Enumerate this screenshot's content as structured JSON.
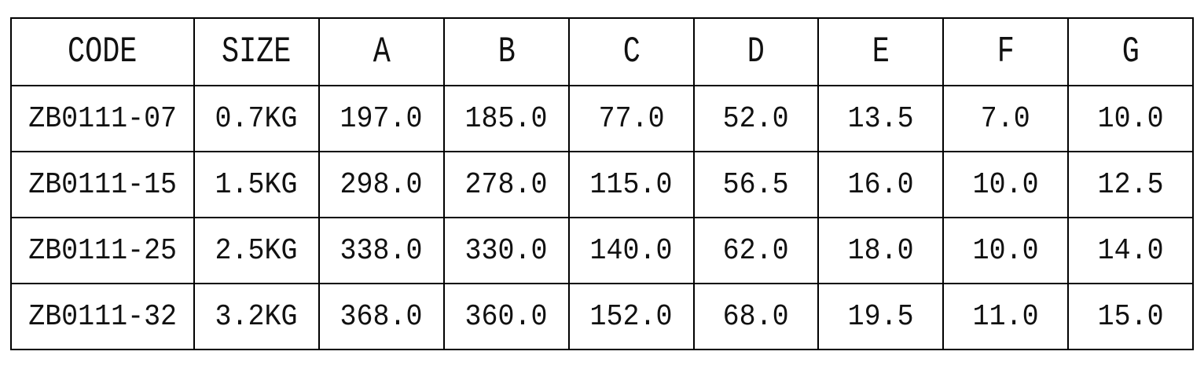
{
  "table": {
    "header": [
      "CODE",
      "SIZE",
      "A",
      "B",
      "C",
      "D",
      "E",
      "F",
      "G"
    ],
    "rows": [
      [
        "ZB0111-07",
        "0.7KG",
        "197.0",
        "185.0",
        "77.0",
        "52.0",
        "13.5",
        "7.0",
        "10.0"
      ],
      [
        "ZB0111-15",
        "1.5KG",
        "298.0",
        "278.0",
        "115.0",
        "56.5",
        "16.0",
        "10.0",
        "12.5"
      ],
      [
        "ZB0111-25",
        "2.5KG",
        "338.0",
        "330.0",
        "140.0",
        "62.0",
        "18.0",
        "10.0",
        "14.0"
      ],
      [
        "ZB0111-32",
        "3.2KG",
        "368.0",
        "360.0",
        "152.0",
        "68.0",
        "19.5",
        "11.0",
        "15.0"
      ]
    ]
  }
}
